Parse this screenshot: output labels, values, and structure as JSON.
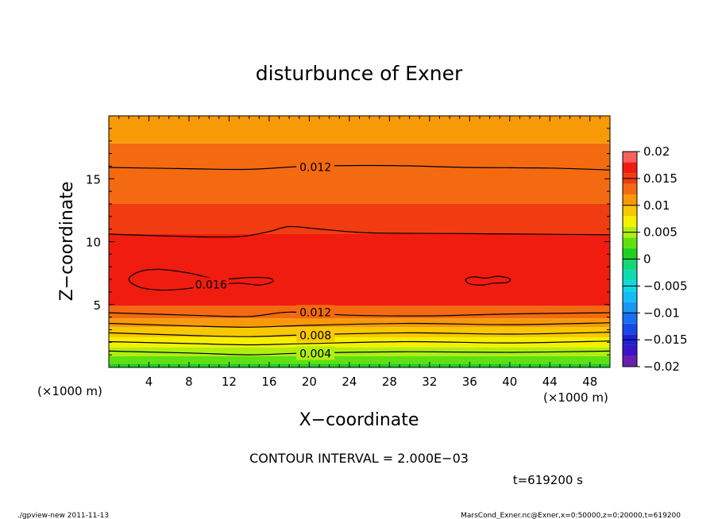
{
  "chart_data": {
    "type": "heatmap",
    "title": "disturbunce of Exner",
    "xlabel": "X−coordinate",
    "ylabel": "Z−coordinate",
    "x_unit": "(×1000 m)",
    "y_unit": "(×1000 m)",
    "xlim": [
      0,
      50
    ],
    "ylim": [
      0,
      20
    ],
    "x_ticks": [
      4,
      8,
      12,
      16,
      20,
      24,
      28,
      32,
      36,
      40,
      44,
      48
    ],
    "y_ticks": [
      5,
      10,
      15
    ],
    "contour_interval_label": "CONTOUR INTERVAL = 2.000E−03",
    "time_label": "t=619200 s",
    "colorbar": {
      "tick_labels": [
        "0.02",
        "0.015",
        "0.01",
        "0.005",
        "0",
        "−0.005",
        "−0.01",
        "−0.015",
        "−0.02"
      ],
      "levels": [
        {
          "min": -0.02,
          "max": -0.018,
          "color": "#6a1fb0"
        },
        {
          "min": -0.018,
          "max": -0.016,
          "color": "#3a16c8"
        },
        {
          "min": -0.016,
          "max": -0.014,
          "color": "#1a22d8"
        },
        {
          "min": -0.014,
          "max": -0.012,
          "color": "#1a48e8"
        },
        {
          "min": -0.012,
          "max": -0.01,
          "color": "#1a6ef0"
        },
        {
          "min": -0.01,
          "max": -0.008,
          "color": "#1a96f4"
        },
        {
          "min": -0.008,
          "max": -0.006,
          "color": "#14bcf4"
        },
        {
          "min": -0.006,
          "max": -0.004,
          "color": "#10d8e0"
        },
        {
          "min": -0.004,
          "max": -0.002,
          "color": "#10dcb0"
        },
        {
          "min": -0.002,
          "max": 0.0,
          "color": "#14d878"
        },
        {
          "min": 0.0,
          "max": 0.002,
          "color": "#20d020"
        },
        {
          "min": 0.002,
          "max": 0.004,
          "color": "#60e010"
        },
        {
          "min": 0.004,
          "max": 0.006,
          "color": "#b0ee10"
        },
        {
          "min": 0.006,
          "max": 0.008,
          "color": "#f6f000"
        },
        {
          "min": 0.008,
          "max": 0.01,
          "color": "#f8c800"
        },
        {
          "min": 0.01,
          "max": 0.012,
          "color": "#f89a08"
        },
        {
          "min": 0.012,
          "max": 0.014,
          "color": "#f46a10"
        },
        {
          "min": 0.014,
          "max": 0.016,
          "color": "#f03c10"
        },
        {
          "min": 0.016,
          "max": 0.018,
          "color": "#f01c10"
        },
        {
          "min": 0.018,
          "max": 0.02,
          "color": "#f86060"
        }
      ]
    },
    "filled_bands": [
      {
        "z_min": 0.0,
        "z_max": 0.3,
        "color": "#20d020"
      },
      {
        "z_min": 0.3,
        "z_max": 0.9,
        "color": "#60e010"
      },
      {
        "z_min": 0.9,
        "z_max": 1.6,
        "color": "#b0ee10"
      },
      {
        "z_min": 1.6,
        "z_max": 2.4,
        "color": "#f6f000"
      },
      {
        "z_min": 2.4,
        "z_max": 3.2,
        "color": "#f8c800"
      },
      {
        "z_min": 3.2,
        "z_max": 3.9,
        "color": "#f89a08"
      },
      {
        "z_min": 3.9,
        "z_max": 4.9,
        "color": "#f46a10"
      },
      {
        "z_min": 4.9,
        "z_max": 10.6,
        "color": "#f01c10"
      },
      {
        "z_min": 10.6,
        "z_max": 13.0,
        "color": "#f03c10"
      },
      {
        "z_min": 13.0,
        "z_max": 17.8,
        "color": "#f46a10"
      },
      {
        "z_min": 17.8,
        "z_max": 20.0,
        "color": "#f89a08"
      }
    ],
    "contour_lines": [
      {
        "level": 0.004,
        "label": "0.004",
        "label_x": 18.0,
        "points": [
          [
            0,
            1.3
          ],
          [
            8,
            1.15
          ],
          [
            14,
            1.0
          ],
          [
            20,
            1.15
          ],
          [
            30,
            1.25
          ],
          [
            40,
            1.2
          ],
          [
            50,
            1.3
          ]
        ]
      },
      {
        "level": 0.006,
        "points": [
          [
            0,
            2.05
          ],
          [
            8,
            1.9
          ],
          [
            14,
            1.8
          ],
          [
            20,
            1.9
          ],
          [
            30,
            2.05
          ],
          [
            40,
            1.95
          ],
          [
            50,
            2.1
          ]
        ]
      },
      {
        "level": 0.008,
        "label": "0.008",
        "label_x": 18.0,
        "points": [
          [
            0,
            2.75
          ],
          [
            8,
            2.55
          ],
          [
            14,
            2.45
          ],
          [
            20,
            2.6
          ],
          [
            30,
            2.75
          ],
          [
            40,
            2.65
          ],
          [
            50,
            2.8
          ]
        ]
      },
      {
        "level": 0.01,
        "points": [
          [
            0,
            3.5
          ],
          [
            8,
            3.3
          ],
          [
            14,
            3.2
          ],
          [
            20,
            3.35
          ],
          [
            30,
            3.5
          ],
          [
            40,
            3.4
          ],
          [
            50,
            3.55
          ]
        ]
      },
      {
        "level": 0.012,
        "label": "0.012",
        "label_x": 18.0,
        "points": [
          [
            0,
            4.35
          ],
          [
            8,
            4.15
          ],
          [
            14,
            4.05
          ],
          [
            18,
            4.4
          ],
          [
            24,
            4.15
          ],
          [
            32,
            4.1
          ],
          [
            40,
            4.25
          ],
          [
            50,
            4.35
          ]
        ]
      },
      {
        "level": 0.014,
        "points": [
          [
            0,
            10.6
          ],
          [
            8,
            10.4
          ],
          [
            13,
            10.4
          ],
          [
            16,
            10.8
          ],
          [
            18,
            11.2
          ],
          [
            21,
            11.0
          ],
          [
            26,
            10.7
          ],
          [
            34,
            10.65
          ],
          [
            42,
            10.6
          ],
          [
            50,
            10.55
          ]
        ]
      },
      {
        "level": 0.012,
        "label": "0.012",
        "label_x": 18.0,
        "points": [
          [
            0,
            15.9
          ],
          [
            8,
            15.8
          ],
          [
            14,
            15.75
          ],
          [
            20,
            16.0
          ],
          [
            28,
            16.05
          ],
          [
            36,
            15.9
          ],
          [
            44,
            15.85
          ],
          [
            50,
            15.7
          ]
        ]
      }
    ],
    "closed_contours": [
      {
        "level": 0.016,
        "label": "0.016",
        "label_x": 10.2,
        "label_y": 6.6,
        "points": [
          [
            2.0,
            7.0
          ],
          [
            3.0,
            7.6
          ],
          [
            5.0,
            7.8
          ],
          [
            8.0,
            7.5
          ],
          [
            10.0,
            7.15
          ],
          [
            12.0,
            7.05
          ],
          [
            14.0,
            7.15
          ],
          [
            16.0,
            7.1
          ],
          [
            16.3,
            6.8
          ],
          [
            15.0,
            6.55
          ],
          [
            13.0,
            6.7
          ],
          [
            11.0,
            6.6
          ],
          [
            9.0,
            6.4
          ],
          [
            7.0,
            6.2
          ],
          [
            5.0,
            6.15
          ],
          [
            3.0,
            6.4
          ]
        ]
      },
      {
        "level": 0.016,
        "points": [
          [
            35.6,
            7.0
          ],
          [
            36.4,
            7.2
          ],
          [
            37.6,
            7.1
          ],
          [
            38.8,
            7.25
          ],
          [
            40.0,
            7.05
          ],
          [
            39.7,
            6.75
          ],
          [
            38.4,
            6.7
          ],
          [
            37.2,
            6.55
          ],
          [
            36.0,
            6.65
          ]
        ]
      }
    ]
  },
  "footer": {
    "left": "./gpview-new   2011-11-13",
    "right": "MarsCond_Exner.nc@Exner,x=0:50000,z=0:20000,t=619200"
  }
}
